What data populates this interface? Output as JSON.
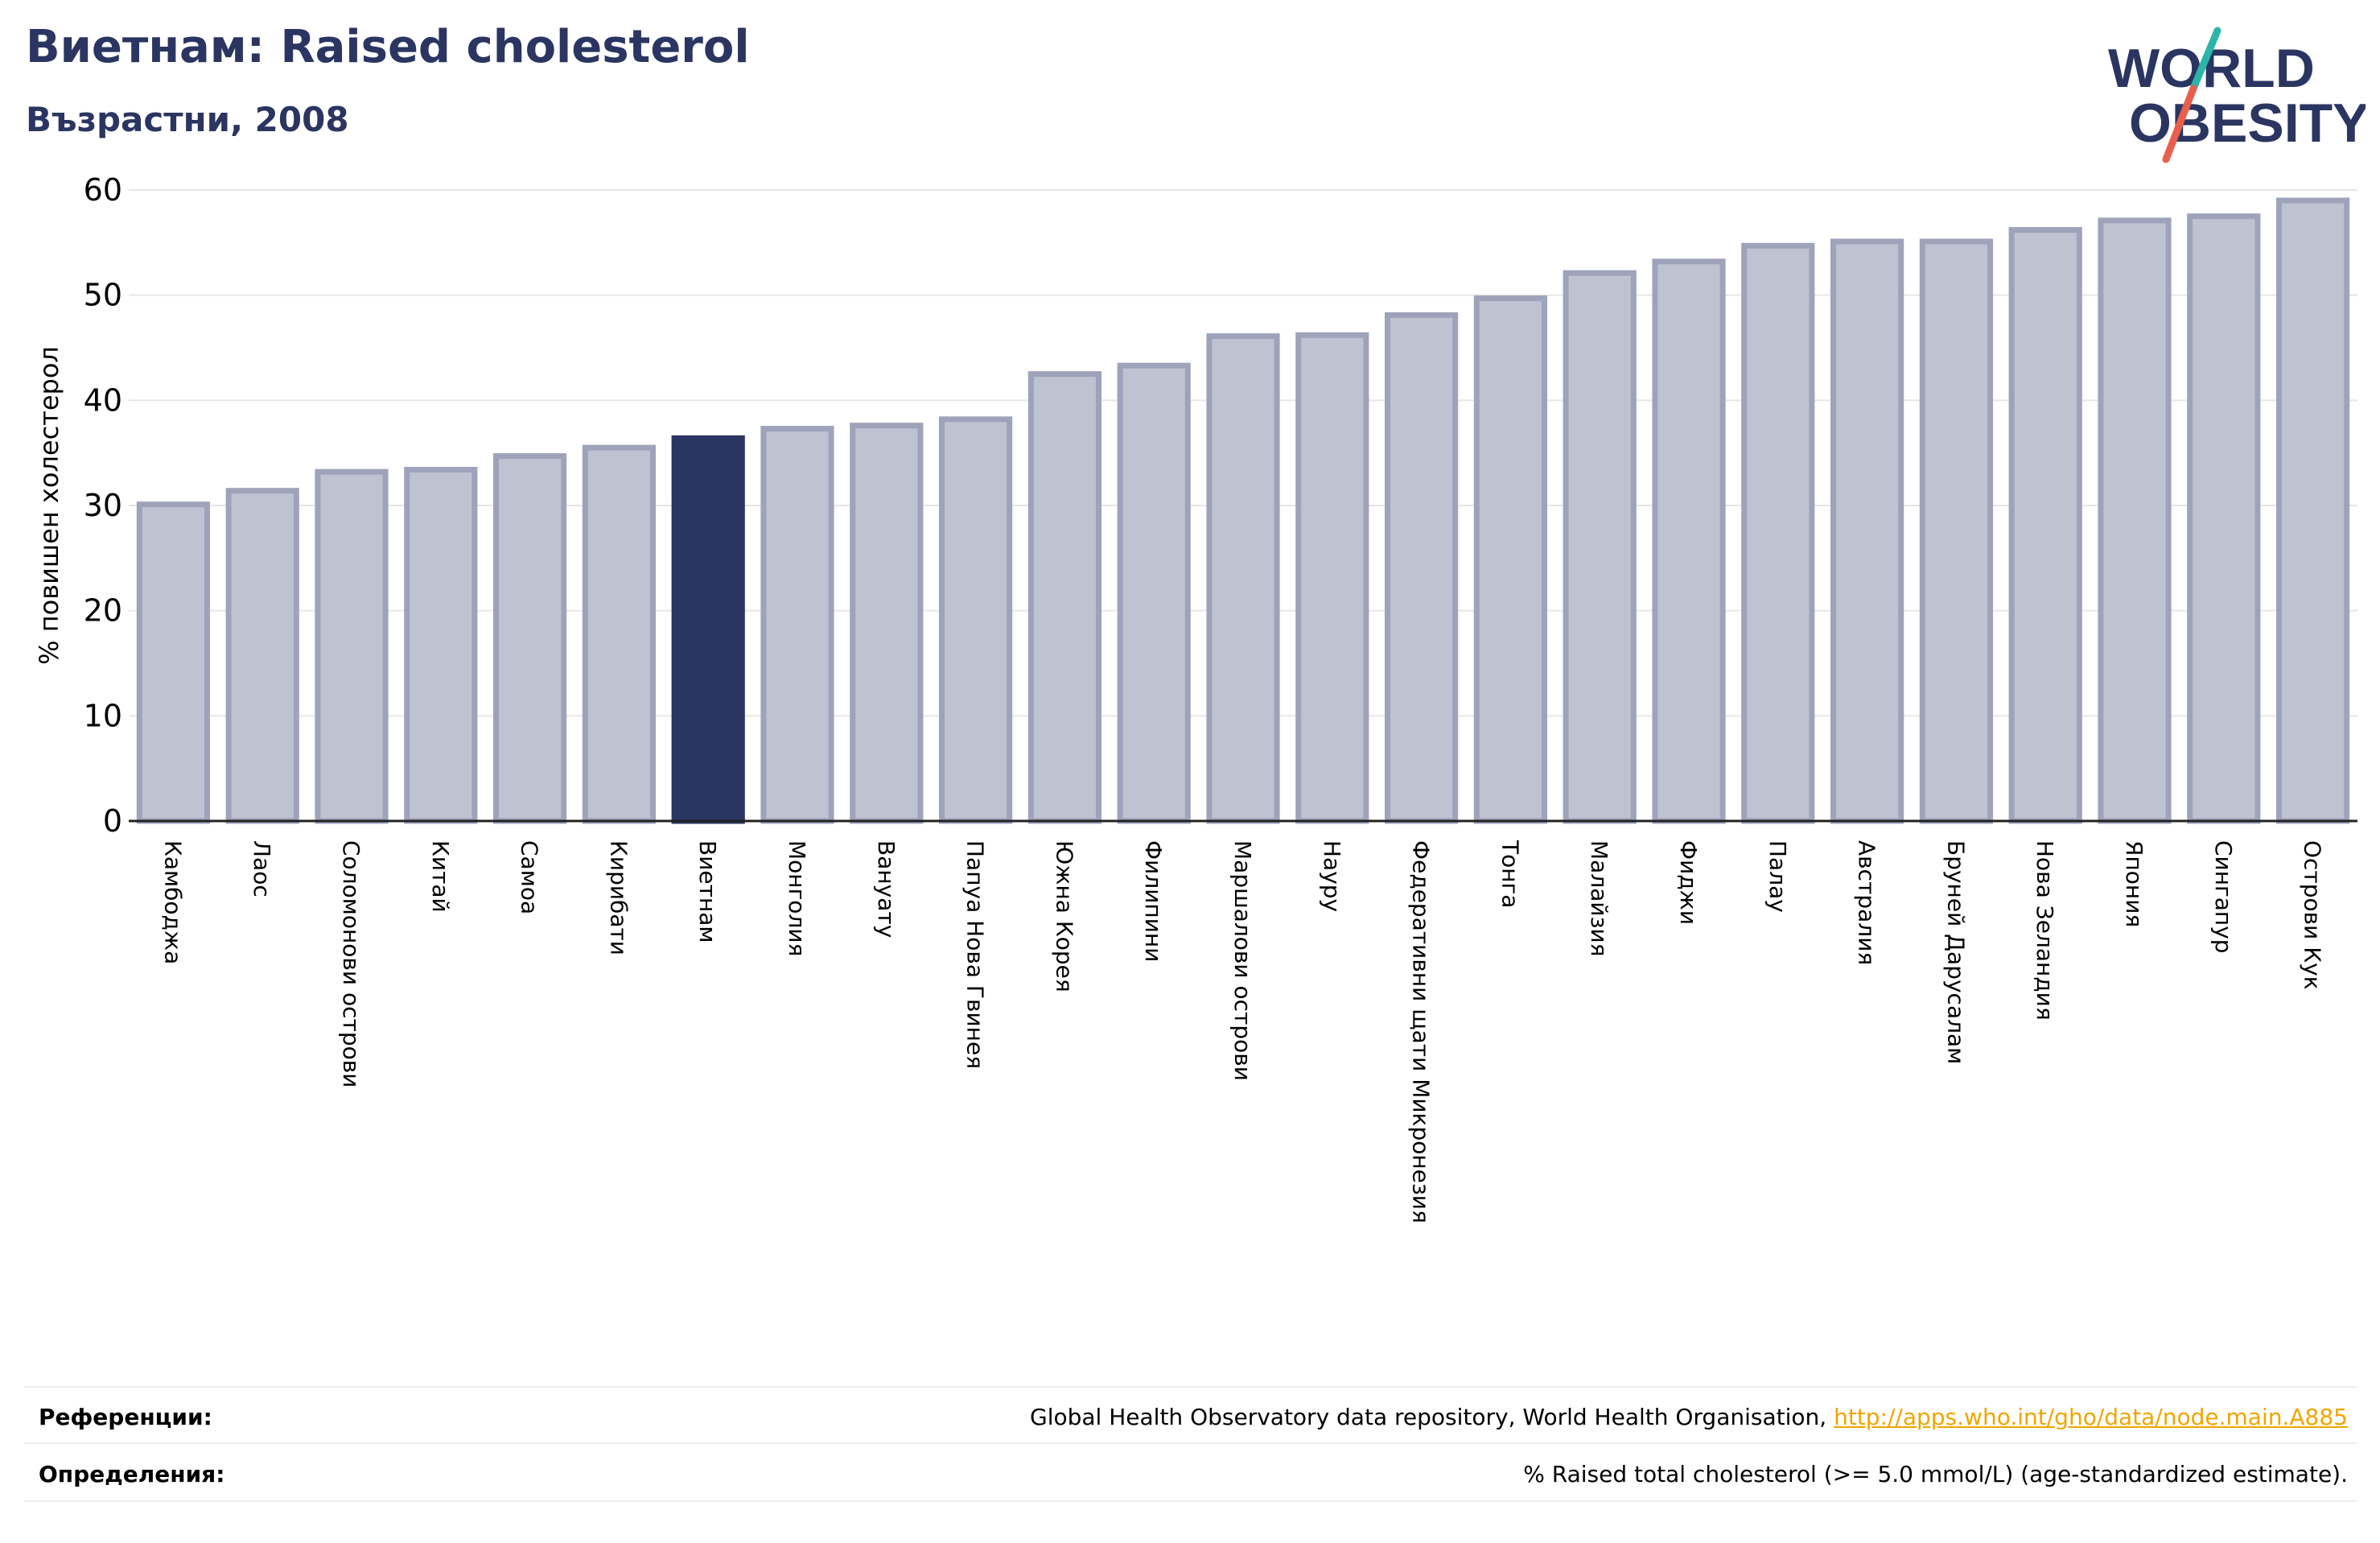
{
  "header": {
    "title": "Виетнам: Raised cholesterol",
    "subtitle": "Възрастни, 2008"
  },
  "logo": {
    "line1": "WORLD",
    "line2": "OBESITY",
    "text_color": "#2a3561",
    "slash_top_color": "#2bb5a8",
    "slash_bottom_color": "#e8604c"
  },
  "chart_data": {
    "type": "bar",
    "ylabel": "% повишен холестерол",
    "ylim": [
      0,
      60
    ],
    "yticks": [
      0,
      10,
      20,
      30,
      40,
      50,
      60
    ],
    "grid": true,
    "highlight": "Виетнам",
    "colors": {
      "bar": "#bfc2d0",
      "bar_edge": "#9ea3bb",
      "highlight": "#2a3561",
      "grid": "#e6e6e6",
      "axis": "#222222"
    },
    "categories": [
      "Камбоджа",
      "Лаос",
      "Соломонови острови",
      "Китай",
      "Самоа",
      "Кирибати",
      "Виетнам",
      "Монголия",
      "Вануату",
      "Папуа Нова Гвинея",
      "Южна Корея",
      "Филипини",
      "Маршалови острови",
      "Науру",
      "Федеративни щати Микронезия",
      "Тонга",
      "Малайзия",
      "Фиджи",
      "Палау",
      "Австралия",
      "Бруней Дарусалам",
      "Нова Зеландия",
      "Япония",
      "Сингапур",
      "Острови Кук"
    ],
    "values": [
      30.1,
      31.4,
      33.2,
      33.4,
      34.7,
      35.5,
      36.4,
      37.3,
      37.6,
      38.2,
      42.5,
      43.3,
      46.1,
      46.2,
      48.1,
      49.7,
      52.1,
      53.2,
      54.7,
      55.1,
      55.1,
      56.2,
      57.1,
      57.5,
      59.0
    ]
  },
  "footer": {
    "references_label": "Референции:",
    "references_text": "Global Health Observatory data repository, World Health Organisation, ",
    "references_link": "http://apps.who.int/gho/data/node.main.A885",
    "definitions_label": "Определения:",
    "definitions_text": "% Raised total cholesterol (>= 5.0 mmol/L) (age-standardized estimate)."
  }
}
